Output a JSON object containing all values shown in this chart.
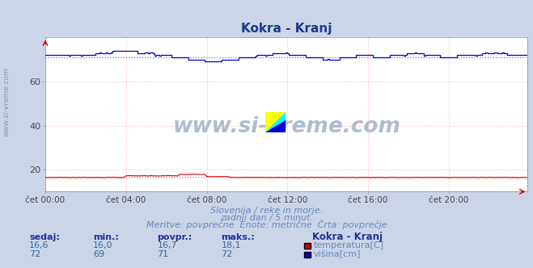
{
  "title": "Kokra - Kranj",
  "title_color": "#1a3a8c",
  "bg_color": "#ccd5e8",
  "plot_bg_color": "#ffffff",
  "xlabel_ticks": [
    "čet 00:00",
    "čet 04:00",
    "čet 08:00",
    "čet 12:00",
    "čet 16:00",
    "čet 20:00"
  ],
  "yticks": [
    20,
    40,
    60
  ],
  "ylim": [
    10,
    80
  ],
  "xlim": [
    0,
    287
  ],
  "temp_color": "#cc0000",
  "height_color": "#0000cc",
  "temp_avg_dotted_color": "#ff6666",
  "height_avg_dotted_color": "#6666ff",
  "grid_color": "#ffaaaa",
  "footer_line1": "Slovenija / reke in morje.",
  "footer_line2": "zadnji dan / 5 minut.",
  "footer_line3": "Meritve: povprečne  Enote: metrične  Črta: povprečje",
  "footer_color": "#6688bb",
  "table_header_color": "#223399",
  "table_value_color": "#336699",
  "table_label_color": "#6688bb",
  "sedaj_temp": "16,6",
  "min_temp": "16,0",
  "povpr_temp": "16,7",
  "maks_temp": "18,1",
  "sedaj_vis": "72",
  "min_vis": "69",
  "povpr_vis": "71",
  "maks_vis": "72",
  "station_name": "Kokra - Kranj",
  "temp_avg": 16.7,
  "height_avg": 71.0,
  "watermark": "www.si-vreme.com",
  "watermark_color": "#b0bcd0",
  "sidebar_text": "www.si-vreme.com",
  "sidebar_color": "#7799bb"
}
